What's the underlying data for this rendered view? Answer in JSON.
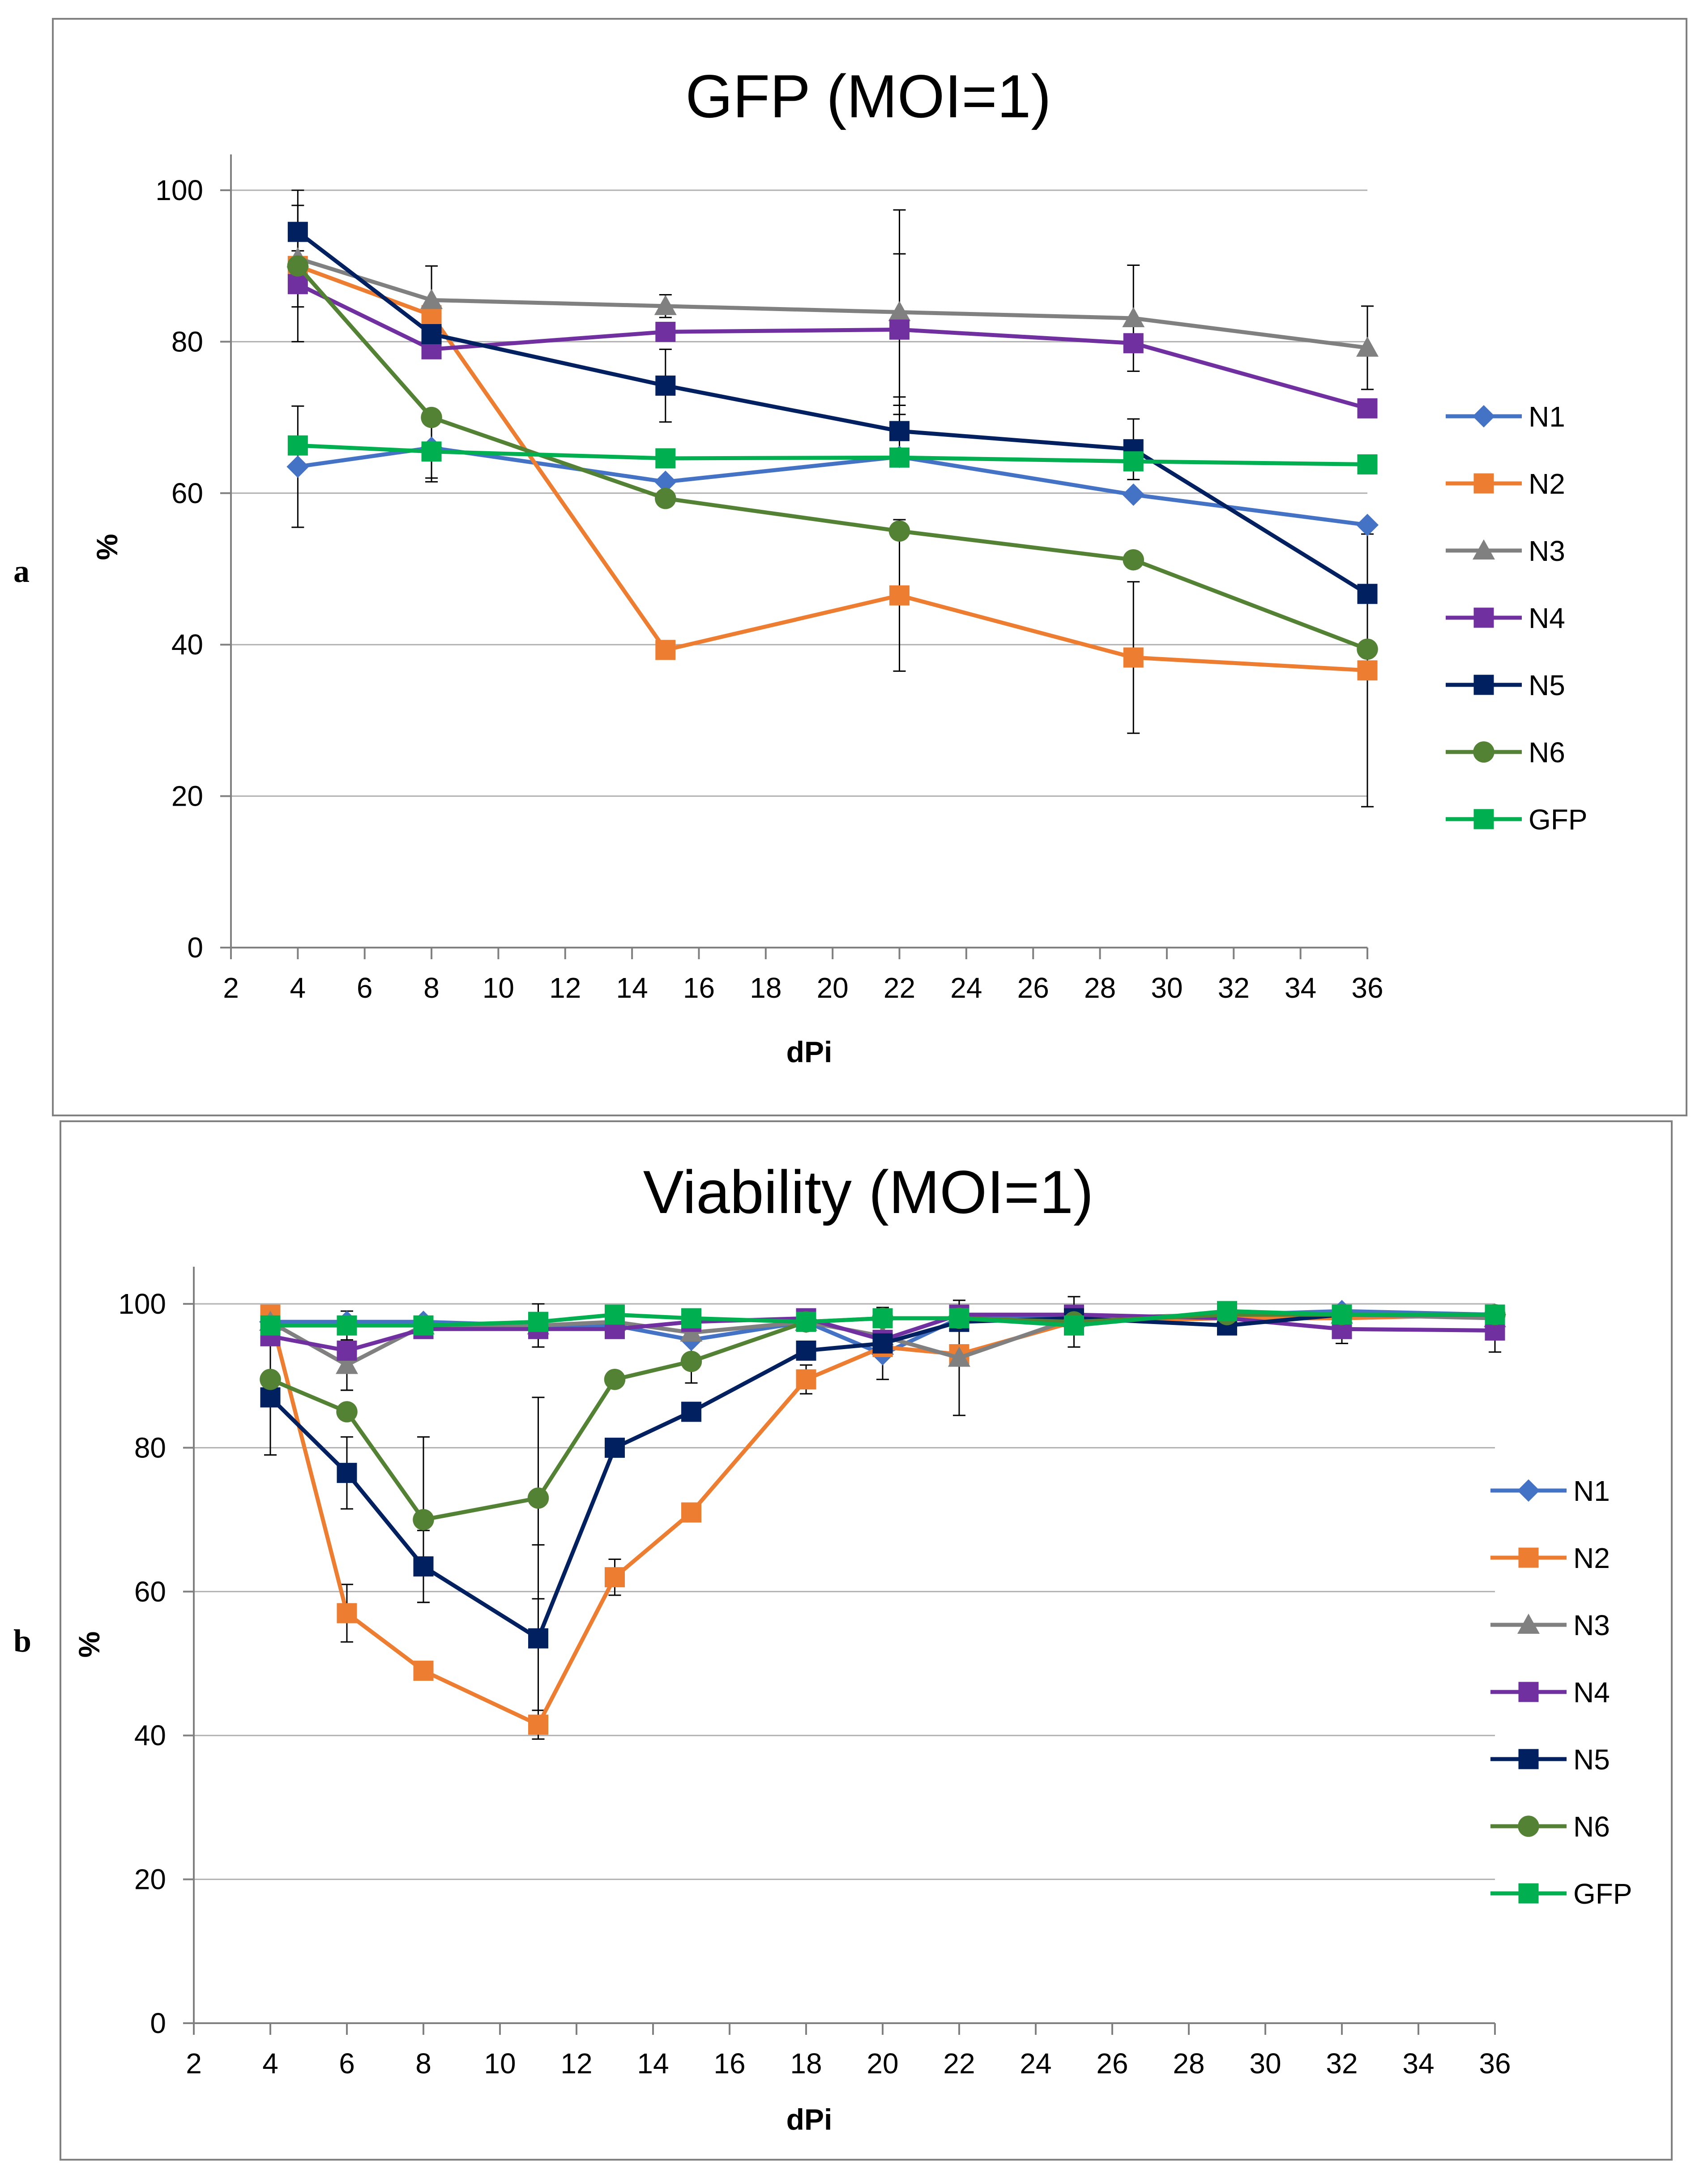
{
  "panel_labels": [
    "a",
    "b"
  ],
  "chart_data": [
    {
      "type": "line",
      "title": "GFP (MOI=1)",
      "xlabel": "dPi",
      "ylabel": "%",
      "xlim": [
        2,
        36
      ],
      "ylim": [
        0,
        100
      ],
      "xticks": [
        2,
        4,
        6,
        8,
        10,
        12,
        14,
        16,
        18,
        20,
        22,
        24,
        26,
        28,
        30,
        32,
        34,
        36
      ],
      "yticks": [
        0,
        20,
        40,
        60,
        80,
        100
      ],
      "grid": "horizontal",
      "legend_position": "right",
      "series": [
        {
          "name": "N1",
          "color": "#4472C4",
          "marker": "diamond",
          "x": [
            4,
            8,
            15,
            22,
            29,
            36
          ],
          "y": [
            63.5,
            66,
            61.5,
            64.8,
            59.8,
            55.8
          ],
          "err": [
            8,
            4,
            0,
            0,
            0,
            0
          ]
        },
        {
          "name": "N2",
          "color": "#ED7D31",
          "marker": "square",
          "x": [
            4,
            8,
            15,
            22,
            29,
            36
          ],
          "y": [
            90,
            83.5,
            39.3,
            46.5,
            38.3,
            36.6
          ],
          "err": [
            2,
            0,
            0,
            10,
            10,
            18
          ]
        },
        {
          "name": "N3",
          "color": "#808080",
          "marker": "triangle",
          "x": [
            4,
            8,
            15,
            22,
            29,
            36
          ],
          "y": [
            91,
            85.5,
            84.7,
            83.9,
            83.1,
            79.2
          ],
          "err": [
            0,
            4.5,
            1.5,
            13.5,
            7,
            5.5
          ]
        },
        {
          "name": "N4",
          "color": "#7030A0",
          "marker": "square",
          "x": [
            4,
            8,
            15,
            22,
            29,
            36
          ],
          "y": [
            87.6,
            79,
            81.3,
            81.6,
            79.8,
            71.2
          ],
          "err": [
            3,
            0,
            0,
            10,
            0,
            0
          ]
        },
        {
          "name": "N5",
          "color": "#002060",
          "marker": "square",
          "x": [
            4,
            8,
            15,
            22,
            29,
            36
          ],
          "y": [
            94.5,
            81,
            74.2,
            68.2,
            65.8,
            46.7
          ],
          "err": [
            3.5,
            0,
            4.8,
            4.5,
            4,
            0
          ]
        },
        {
          "name": "N6",
          "color": "#548235",
          "marker": "circle",
          "x": [
            4,
            8,
            15,
            22,
            29,
            36
          ],
          "y": [
            90,
            70,
            59.3,
            55,
            51.2,
            39.4
          ],
          "err": [
            10,
            0,
            0,
            0,
            0,
            0
          ]
        },
        {
          "name": "GFP",
          "color": "#00B050",
          "marker": "square",
          "x": [
            4,
            8,
            15,
            22,
            29,
            36
          ],
          "y": [
            66.3,
            65.5,
            64.6,
            64.7,
            64.2,
            63.8
          ],
          "err": [
            0,
            4,
            0,
            0,
            0,
            0
          ]
        }
      ]
    },
    {
      "type": "line",
      "title": "Viability (MOI=1)",
      "xlabel": "dPi",
      "ylabel": "%",
      "xlim": [
        2,
        36
      ],
      "ylim": [
        0,
        100
      ],
      "xticks": [
        2,
        4,
        6,
        8,
        10,
        12,
        14,
        16,
        18,
        20,
        22,
        24,
        26,
        28,
        30,
        32,
        34,
        36
      ],
      "yticks": [
        0,
        20,
        40,
        60,
        80,
        100
      ],
      "grid": "horizontal",
      "legend_position": "right",
      "series": [
        {
          "name": "N1",
          "color": "#4472C4",
          "marker": "diamond",
          "x": [
            4,
            6,
            8,
            11,
            13,
            15,
            18,
            20,
            22,
            25,
            29,
            32,
            36
          ],
          "y": [
            97.5,
            97.5,
            97.5,
            97,
            97,
            95,
            97.5,
            93,
            98,
            98,
            98.5,
            99,
            98.5
          ],
          "err": [
            0,
            0,
            0,
            0,
            0,
            0,
            0,
            0,
            0,
            0,
            0,
            0,
            0
          ]
        },
        {
          "name": "N2",
          "color": "#ED7D31",
          "marker": "square",
          "x": [
            4,
            6,
            8,
            11,
            13,
            15,
            18,
            20,
            22,
            25,
            29,
            32,
            36
          ],
          "y": [
            98.5,
            57,
            49,
            41.5,
            62,
            71,
            89.5,
            94,
            93,
            97.5,
            98,
            98,
            98.5
          ],
          "err": [
            0,
            4,
            0,
            2,
            2.5,
            0,
            2,
            0,
            0,
            0,
            0,
            0,
            0
          ]
        },
        {
          "name": "N3",
          "color": "#808080",
          "marker": "triangle",
          "x": [
            4,
            6,
            8,
            11,
            13,
            15,
            18,
            20,
            22,
            25,
            29,
            32,
            36
          ],
          "y": [
            97.5,
            91.5,
            97,
            97,
            97.5,
            96,
            97.5,
            95.5,
            92.5,
            98,
            98.5,
            98.5,
            98
          ],
          "err": [
            0,
            3.5,
            0,
            3,
            0,
            0,
            0,
            0,
            8,
            0,
            0,
            0,
            0
          ]
        },
        {
          "name": "N4",
          "color": "#7030A0",
          "marker": "square",
          "x": [
            4,
            6,
            8,
            11,
            13,
            15,
            18,
            20,
            22,
            25,
            29,
            32,
            36
          ],
          "y": [
            95.5,
            93.5,
            96.5,
            96.5,
            96.5,
            97.5,
            98,
            95,
            98.5,
            98.5,
            98,
            96.5,
            96.3
          ],
          "err": [
            0,
            5.5,
            0,
            0,
            0,
            0,
            0,
            0,
            0,
            0,
            0,
            2,
            3
          ]
        },
        {
          "name": "N5",
          "color": "#002060",
          "marker": "square",
          "x": [
            4,
            6,
            8,
            11,
            13,
            15,
            18,
            20,
            22,
            25,
            29,
            32,
            36
          ],
          "y": [
            87,
            76.5,
            63.5,
            53.5,
            80,
            85,
            93.5,
            94.5,
            97.5,
            98,
            97,
            98.5,
            98.5
          ],
          "err": [
            8,
            5,
            5,
            13,
            0,
            0,
            0,
            5,
            0,
            0,
            0,
            0,
            0
          ]
        },
        {
          "name": "N6",
          "color": "#548235",
          "marker": "circle",
          "x": [
            4,
            6,
            8,
            11,
            13,
            15,
            18,
            20,
            22,
            25,
            29,
            32,
            36
          ],
          "y": [
            89.5,
            85,
            70,
            73,
            89.5,
            92,
            97.5,
            98,
            98,
            97.5,
            98.5,
            98.5,
            98.5
          ],
          "err": [
            0,
            0,
            11.5,
            14,
            0,
            3,
            0,
            0,
            0,
            3.5,
            0,
            0,
            0
          ]
        },
        {
          "name": "GFP",
          "color": "#00B050",
          "marker": "square",
          "x": [
            4,
            6,
            8,
            11,
            13,
            15,
            18,
            20,
            22,
            25,
            29,
            32,
            36
          ],
          "y": [
            97,
            97,
            97,
            97.5,
            98.5,
            98,
            97.5,
            98,
            98,
            97,
            99,
            98.5,
            98.5
          ],
          "err": [
            0,
            0,
            0,
            0,
            0,
            0,
            0,
            0,
            0,
            0,
            0,
            0,
            0
          ]
        }
      ]
    }
  ]
}
